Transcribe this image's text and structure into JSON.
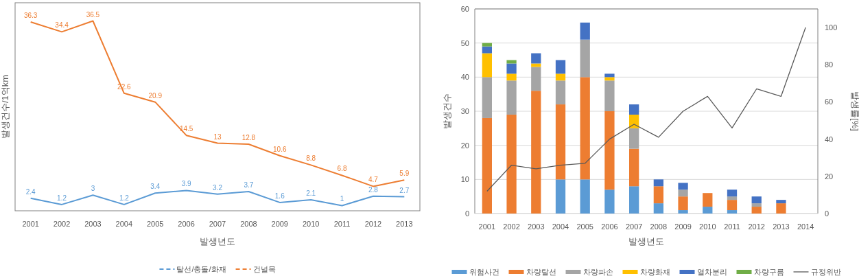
{
  "chart_data": [
    {
      "type": "line",
      "xlabel": "발생년도",
      "ylabel": "발생건수/1억km",
      "categories": [
        "2001",
        "2002",
        "2003",
        "2004",
        "2005",
        "2006",
        "2007",
        "2008",
        "2009",
        "2010",
        "2011",
        "2012",
        "2013"
      ],
      "ylim": [
        0,
        40
      ],
      "tick_labels": "x",
      "data_labels": true,
      "grid": false,
      "legend": "bottom",
      "series": [
        {
          "name": "탈선/충돌/화재",
          "color": "#5b9bd5",
          "values": [
            2.4,
            1.2,
            3,
            1.2,
            3.4,
            3.9,
            3.2,
            3.7,
            1.6,
            2.1,
            1,
            2.8,
            2.7
          ]
        },
        {
          "name": "건널목",
          "color": "#ed7d31",
          "values": [
            36.3,
            34.4,
            36.5,
            22.6,
            20.9,
            14.5,
            13,
            12.8,
            10.6,
            8.8,
            6.8,
            4.7,
            5.9
          ]
        }
      ]
    },
    {
      "type": "bar",
      "stacked": true,
      "xlabel": "발생년도",
      "ylabel": "발생건수",
      "y2label": "발생률[%]",
      "categories": [
        "2001",
        "2002",
        "2003",
        "2004",
        "2005",
        "2006",
        "2007",
        "2008",
        "2009",
        "2010",
        "2011",
        "2012",
        "2013",
        "2014"
      ],
      "ylim": [
        0,
        60
      ],
      "yticks": [
        0,
        10,
        20,
        30,
        40,
        50,
        60
      ],
      "y2lim": [
        0,
        110
      ],
      "y2ticks": [
        0,
        20,
        40,
        60,
        80,
        100
      ],
      "grid": "y",
      "legend": "bottom",
      "series": [
        {
          "name": "위험사건",
          "color": "#5b9bd5",
          "values": [
            0,
            0,
            0,
            10,
            10,
            7,
            8,
            3,
            1,
            2,
            1,
            0,
            0,
            null
          ]
        },
        {
          "name": "차량탈선",
          "color": "#ed7d31",
          "values": [
            28,
            29,
            36,
            22,
            30,
            23,
            11,
            5,
            4,
            4,
            3,
            2,
            3,
            null
          ]
        },
        {
          "name": "차량파손",
          "color": "#a5a5a5",
          "values": [
            12,
            10,
            7,
            7,
            11,
            9,
            6,
            0,
            2,
            0,
            1,
            1,
            0,
            null
          ]
        },
        {
          "name": "차량화재",
          "color": "#ffc000",
          "values": [
            7,
            2,
            1,
            2,
            0,
            1,
            4,
            0,
            0,
            0,
            0,
            0,
            0,
            null
          ]
        },
        {
          "name": "열차분리",
          "color": "#4472c4",
          "values": [
            2,
            3,
            3,
            4,
            5,
            1,
            3,
            2,
            2,
            0,
            2,
            2,
            1,
            null
          ]
        },
        {
          "name": "차량구름",
          "color": "#70ad47",
          "values": [
            1,
            1,
            0,
            0,
            0,
            0,
            0,
            0,
            0,
            0,
            0,
            0,
            0,
            null
          ]
        },
        {
          "name": "규정위반",
          "color": "#595959",
          "type": "line",
          "axis": "y2",
          "values": [
            12,
            26,
            24,
            26,
            27,
            40,
            48,
            41,
            55,
            63,
            46,
            67,
            63,
            100
          ]
        }
      ]
    }
  ]
}
